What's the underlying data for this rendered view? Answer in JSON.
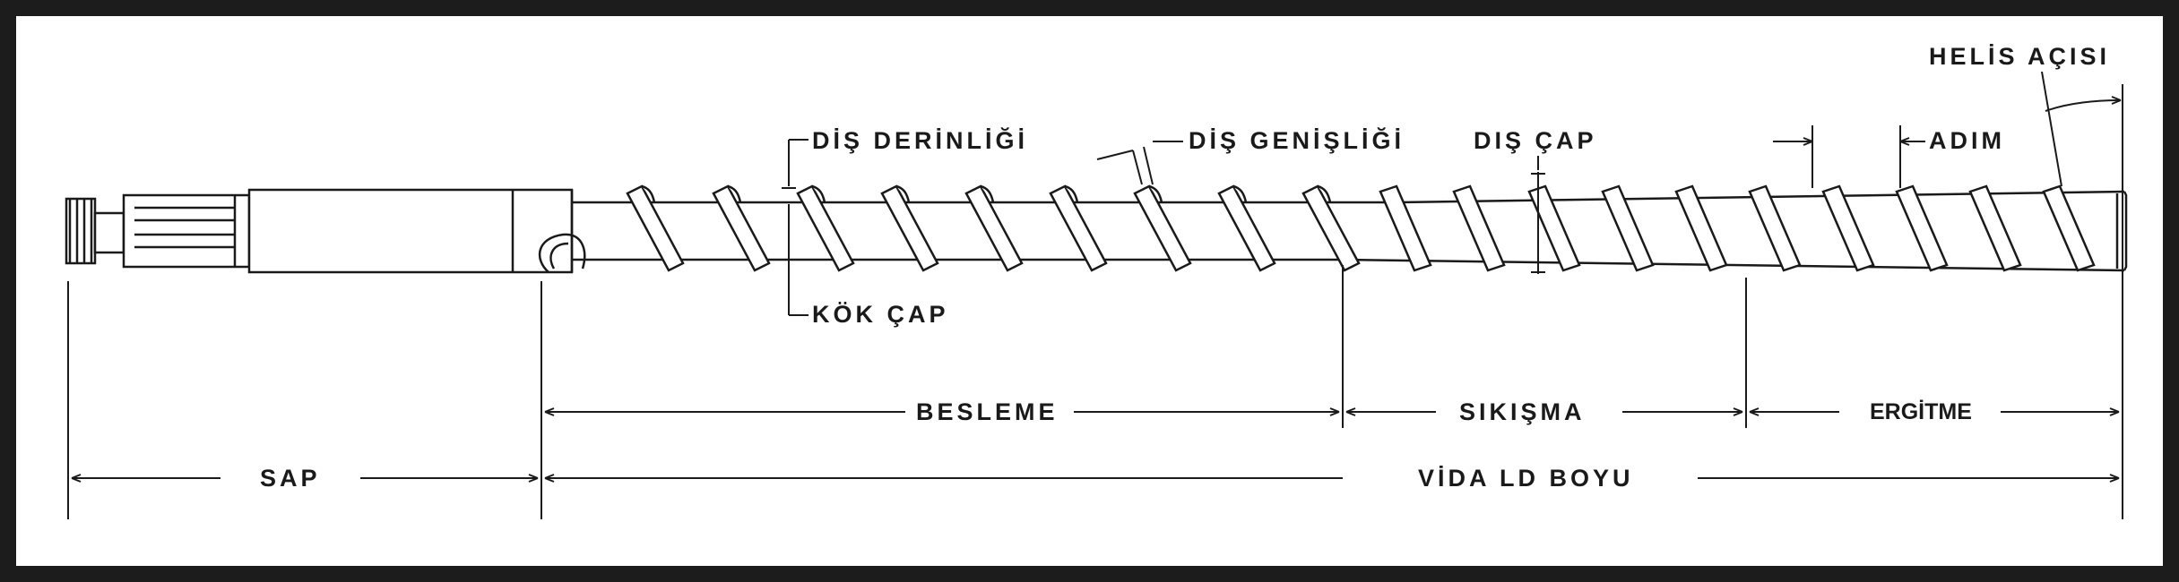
{
  "labels": {
    "helix_angle": "HELİS AÇISI",
    "flight_depth": "DİŞ DERİNLİĞİ",
    "flight_width": "DİŞ GENİŞLİĞİ",
    "outer_diameter": "DIŞ ÇAP",
    "pitch": "ADIM",
    "root_diameter": "KÖK ÇAP",
    "feed_zone": "BESLEME",
    "compression_zone": "SIKIŞMA",
    "melting_zone": "ERGİTME",
    "shank": "SAP",
    "screw_length": "VİDA LD BOYU"
  },
  "colors": {
    "line": "#1a1a1a",
    "frame": "#1c1c1c",
    "background": "#ffffff"
  }
}
